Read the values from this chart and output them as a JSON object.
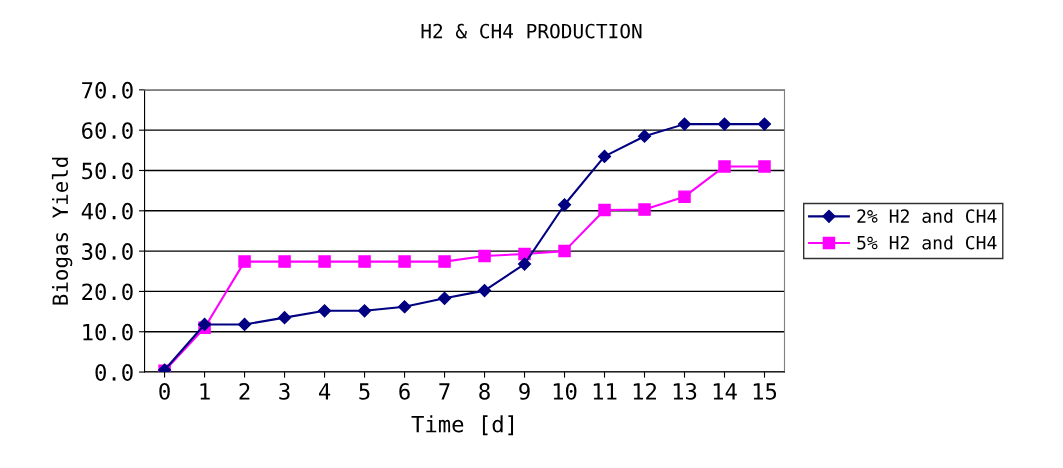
{
  "chart_data": {
    "type": "line",
    "title": "H2 & CH4 PRODUCTION",
    "xlabel": "Time [d]",
    "ylabel": "Biogas Yield",
    "categories": [
      "0",
      "1",
      "2",
      "3",
      "4",
      "5",
      "6",
      "7",
      "8",
      "9",
      "10",
      "11",
      "12",
      "13",
      "14",
      "15"
    ],
    "series": [
      {
        "name": "2% H2 and CH4",
        "color": "#000080",
        "marker": "diamond",
        "values": [
          0.5,
          11.8,
          11.8,
          13.5,
          15.2,
          15.2,
          16.2,
          18.3,
          20.2,
          26.8,
          41.5,
          53.5,
          58.5,
          61.5,
          61.5,
          61.5
        ]
      },
      {
        "name": "5% H2 and CH4",
        "color": "#ff00ff",
        "marker": "square",
        "values": [
          0.3,
          11.0,
          27.4,
          27.4,
          27.4,
          27.4,
          27.4,
          27.4,
          28.8,
          29.3,
          30.0,
          40.2,
          40.3,
          43.5,
          51.0,
          51.0
        ]
      }
    ],
    "ylim": [
      0,
      70
    ],
    "yticks": [
      {
        "value": 0,
        "label": "0.0"
      },
      {
        "value": 10,
        "label": "10.0"
      },
      {
        "value": 20,
        "label": "20.0"
      },
      {
        "value": 30,
        "label": "30.0"
      },
      {
        "value": 40,
        "label": "40.0"
      },
      {
        "value": 50,
        "label": "50.0"
      },
      {
        "value": 60,
        "label": "60.0"
      },
      {
        "value": 70,
        "label": "70.0"
      }
    ],
    "grid": "y",
    "legend": "right",
    "line_style": "solid"
  }
}
